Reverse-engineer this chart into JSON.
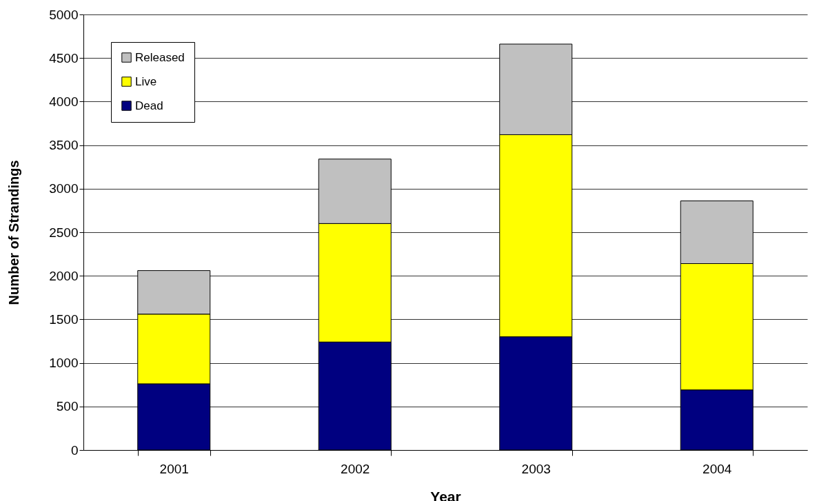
{
  "chart_data": {
    "type": "bar",
    "stacked": true,
    "xlabel": "Year",
    "ylabel": "Number of Strandings",
    "categories": [
      "2001",
      "2002",
      "2003",
      "2004"
    ],
    "series": [
      {
        "name": "Dead",
        "color": "#000080",
        "values": [
          760,
          1240,
          1300,
          690
        ]
      },
      {
        "name": "Live",
        "color": "#ffff00",
        "values": [
          800,
          1360,
          2320,
          1450
        ]
      },
      {
        "name": "Released",
        "color": "#c0c0c0",
        "values": [
          500,
          740,
          1040,
          720
        ]
      }
    ],
    "ylim": [
      0,
      5000
    ],
    "yticks": [
      0,
      500,
      1000,
      1500,
      2000,
      2500,
      3000,
      3500,
      4000,
      4500,
      5000
    ],
    "grid": "y",
    "legend": "top left"
  }
}
